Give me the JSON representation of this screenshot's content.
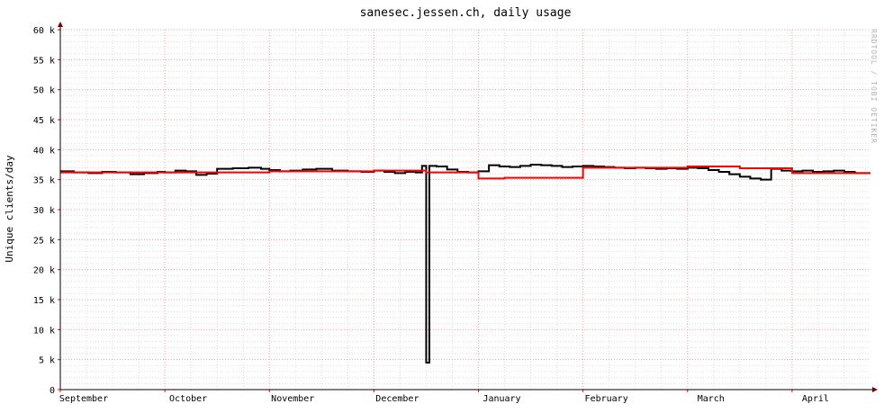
{
  "chart_data": {
    "type": "line",
    "title": "sanesec.jessen.ch, daily usage",
    "ylabel": "Unique clients/day",
    "watermark": "RRDTOOL / TOBI OETIKER",
    "xlabel": "",
    "x_ticks": [
      "September",
      "October",
      "November",
      "December",
      "January",
      "February",
      "March",
      "April"
    ],
    "y_ticks": [
      "0",
      "5 k",
      "10 k",
      "15 k",
      "20 k",
      "25 k",
      "30 k",
      "35 k",
      "40 k",
      "45 k",
      "50 k",
      "55 k",
      "60 k"
    ],
    "ylim": [
      0,
      60000
    ],
    "x_unit": "months from start of September",
    "xlim": [
      0,
      7.75
    ],
    "grid": true,
    "series": [
      {
        "color": "#000000",
        "x": [
          0.0,
          0.13,
          0.27,
          0.4,
          0.53,
          0.67,
          0.8,
          0.93,
          1.0,
          1.1,
          1.2,
          1.3,
          1.4,
          1.5,
          1.65,
          1.8,
          1.92,
          2.0,
          2.1,
          2.2,
          2.32,
          2.45,
          2.6,
          2.75,
          2.88,
          3.0,
          3.1,
          3.2,
          3.3,
          3.4,
          3.46,
          3.5,
          3.53,
          3.6,
          3.7,
          3.8,
          3.9,
          4.0,
          4.1,
          4.2,
          4.3,
          4.4,
          4.5,
          4.6,
          4.7,
          4.8,
          4.9,
          5.0,
          5.1,
          5.2,
          5.3,
          5.4,
          5.5,
          5.6,
          5.7,
          5.8,
          5.9,
          6.0,
          6.1,
          6.2,
          6.3,
          6.4,
          6.5,
          6.6,
          6.7,
          6.8,
          6.9,
          7.0,
          7.1,
          7.2,
          7.3,
          7.4,
          7.5,
          7.6
        ],
        "values": [
          36400,
          36200,
          36100,
          36300,
          36200,
          35900,
          36100,
          36300,
          36200,
          36500,
          36400,
          35800,
          36000,
          36800,
          36900,
          37000,
          36800,
          36600,
          36400,
          36500,
          36700,
          36800,
          36500,
          36400,
          36300,
          36500,
          36300,
          36100,
          36300,
          36200,
          37300,
          4500,
          37300,
          37200,
          36700,
          36300,
          36200,
          36400,
          37400,
          37200,
          37100,
          37300,
          37500,
          37400,
          37300,
          37100,
          37200,
          37300,
          37200,
          37100,
          37000,
          36900,
          37000,
          36900,
          36800,
          36900,
          36800,
          37000,
          36900,
          36600,
          36300,
          35900,
          35500,
          35200,
          35000,
          36800,
          36500,
          36400,
          36500,
          36300,
          36400,
          36500,
          36300,
          36100
        ]
      },
      {
        "color": "#ff0000",
        "x": [
          0.0,
          1.0,
          2.0,
          3.0,
          3.5,
          4.0,
          4.25,
          5.0,
          6.0,
          6.5,
          7.0,
          7.75
        ],
        "values": [
          36200,
          36200,
          36400,
          36500,
          36200,
          35200,
          35300,
          37000,
          37200,
          36900,
          36100,
          36100
        ]
      }
    ]
  }
}
